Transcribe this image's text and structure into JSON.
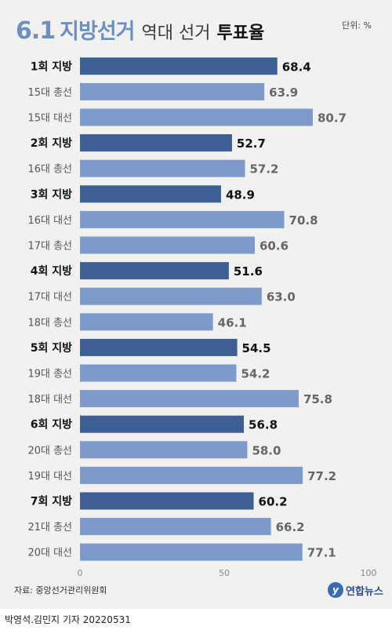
{
  "title": {
    "part1": "6.1",
    "part2": "지방선거",
    "part3": "역대 선거",
    "part4": "투표율"
  },
  "unit_label": "단위: %",
  "source": "자료: 중앙선거관리위원회",
  "logo_text": "연합뉴스",
  "credit": "박영석.김민지 기자 20220531",
  "colors": {
    "local_bar": "#3e5f93",
    "other_bar": "#7d9acb",
    "local_value_text": "#111111",
    "other_value_text": "#666666",
    "panel_bg": "#f1f1ef"
  },
  "chart_data": {
    "type": "bar",
    "orientation": "horizontal",
    "categories": [
      "1회 지방",
      "15대 총선",
      "15대 대선",
      "2회 지방",
      "16대 총선",
      "3회 지방",
      "16대 대선",
      "17대 총선",
      "4회 지방",
      "17대 대선",
      "18대 총선",
      "5회 지방",
      "19대 총선",
      "18대 대선",
      "6회 지방",
      "20대 총선",
      "19대 대선",
      "7회 지방",
      "21대 총선",
      "20대 대선"
    ],
    "values": [
      68.4,
      63.9,
      80.7,
      52.7,
      57.2,
      48.9,
      70.8,
      60.6,
      51.6,
      63.0,
      46.1,
      54.5,
      54.2,
      75.8,
      56.8,
      58.0,
      77.2,
      60.2,
      66.2,
      77.1
    ],
    "value_labels": [
      "68.4",
      "63.9",
      "80.7",
      "52.7",
      "57.2",
      "48.9",
      "70.8",
      "60.6",
      "51.6",
      "63.0",
      "46.1",
      "54.5",
      "54.2",
      "75.8",
      "56.8",
      "58.0",
      "77.2",
      "60.2",
      "66.2",
      "77.1"
    ],
    "highlight": [
      true,
      false,
      false,
      true,
      false,
      true,
      false,
      false,
      true,
      false,
      false,
      true,
      false,
      false,
      true,
      false,
      false,
      true,
      false,
      false
    ],
    "xlim": [
      0,
      100
    ],
    "xticks": [
      "0",
      "50",
      "100"
    ],
    "grid": false
  }
}
